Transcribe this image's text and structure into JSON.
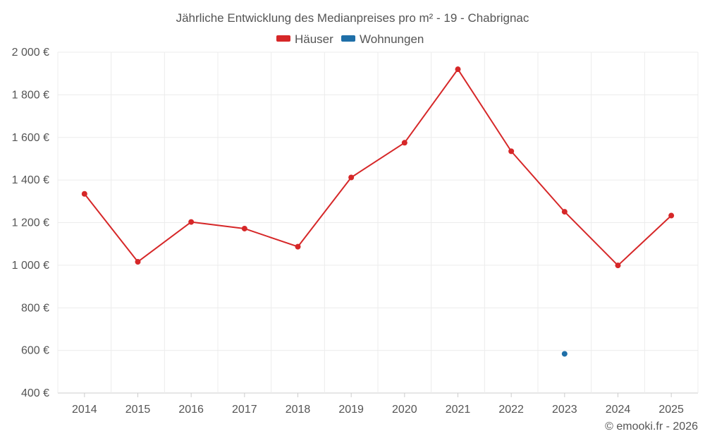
{
  "chart_data": {
    "type": "line",
    "title": "Jährliche Entwicklung des Medianpreises pro m² - 19 - Chabrignac",
    "categories": [
      "2014",
      "2015",
      "2016",
      "2017",
      "2018",
      "2019",
      "2020",
      "2021",
      "2022",
      "2023",
      "2024",
      "2025"
    ],
    "series": [
      {
        "name": "Häuser",
        "color": "#d62728",
        "values": [
          1335,
          1016,
          1203,
          1172,
          1087,
          1412,
          1575,
          1920,
          1535,
          1251,
          999,
          1233
        ]
      },
      {
        "name": "Wohnungen",
        "color": "#1f6fa8",
        "values": [
          null,
          null,
          null,
          null,
          null,
          null,
          null,
          null,
          null,
          584,
          null,
          null
        ]
      }
    ],
    "ylim": [
      400,
      2000
    ],
    "yticks": [
      400,
      600,
      800,
      1000,
      1200,
      1400,
      1600,
      1800,
      2000
    ],
    "ytick_labels": [
      "400 €",
      "600 €",
      "800 €",
      "1 000 €",
      "1 200 €",
      "1 400 €",
      "1 600 €",
      "1 800 €",
      "2 000 €"
    ],
    "xlabel": "",
    "ylabel": "",
    "legend_position": "top-center",
    "grid": true
  },
  "footer": {
    "credit": "© emooki.fr - 2026"
  }
}
